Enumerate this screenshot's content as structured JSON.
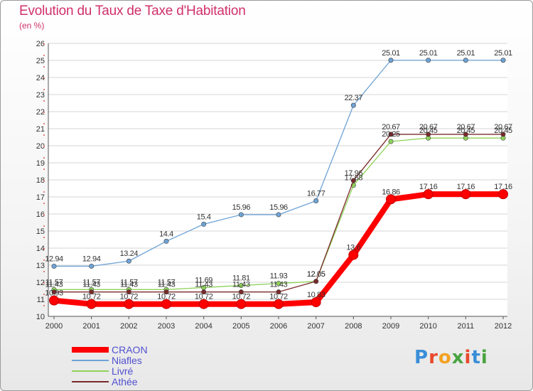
{
  "title": "Evolution du Taux de Taxe d'Habitation",
  "unit_label": "(en %)",
  "logo": {
    "text": "Proxiti",
    "letter_colors": [
      "#3a8ed8",
      "#e8492c",
      "#f3a221",
      "#49a43f",
      "#e8492c",
      "#3a8ed8",
      "#49a43f"
    ]
  },
  "chart_data": {
    "type": "line",
    "title": "Evolution du Taux de Taxe d'Habitation",
    "ylabel": "(en %)",
    "xlabel": "",
    "x": [
      "2000",
      "2001",
      "2002",
      "2003",
      "2004",
      "2005",
      "2006",
      "2007",
      "2008",
      "2009",
      "2010",
      "2011",
      "2012"
    ],
    "ylim": [
      10,
      26
    ],
    "yticks": [
      10,
      11,
      12,
      13,
      14,
      15,
      16,
      17,
      18,
      19,
      20,
      21,
      22,
      23,
      24,
      25,
      26
    ],
    "grid": "horizontal",
    "legend_position": "bottom-left",
    "series": [
      {
        "name": "CRAON",
        "color": "#ff0000",
        "emphasis": true,
        "values": [
          10.93,
          10.72,
          10.72,
          10.72,
          10.72,
          10.72,
          10.72,
          10.83,
          13.6,
          16.86,
          17.16,
          17.16,
          17.16
        ],
        "labels": [
          "10.93",
          "10.72",
          "10.72",
          "10.72",
          "10.72",
          "10.72",
          "10.72",
          "10.83",
          "13.6",
          "16.86",
          "17.16",
          "17.16",
          "17.16"
        ]
      },
      {
        "name": "Niafles",
        "color": "#6ea3d6",
        "values": [
          12.94,
          12.94,
          13.24,
          14.4,
          15.4,
          15.96,
          15.96,
          16.77,
          22.37,
          25.01,
          25.01,
          25.01,
          25.01
        ],
        "labels": [
          "12.94",
          "12.94",
          "13.24",
          "14.4",
          "15.4",
          "15.96",
          "15.96",
          "16.77",
          "22.37",
          "25.01",
          "25.01",
          "25.01",
          "25.01"
        ]
      },
      {
        "name": "Livré",
        "color": "#8fd35a",
        "values": [
          11.57,
          11.57,
          11.57,
          11.57,
          11.69,
          11.81,
          11.93,
          12.05,
          17.68,
          20.25,
          20.45,
          20.45,
          20.45
        ],
        "labels": [
          "11.57",
          "11.57",
          "11.57",
          "11.57",
          "11.69",
          "11.81",
          "11.93",
          "12.05",
          "17.68",
          "20.25",
          "20.45",
          "20.45",
          "20.45"
        ]
      },
      {
        "name": "Athée",
        "color": "#7a2a2a",
        "values": [
          11.43,
          11.43,
          11.43,
          11.43,
          11.43,
          11.43,
          11.43,
          12.05,
          17.96,
          20.67,
          20.67,
          20.67,
          20.67
        ],
        "labels": [
          "11.43",
          "11.43",
          "11.43",
          "11.43",
          "11.43",
          "11.43",
          "11.43",
          "12.05",
          "17.96",
          "20.67",
          "20.67",
          "20.67",
          "20.67"
        ]
      }
    ]
  }
}
